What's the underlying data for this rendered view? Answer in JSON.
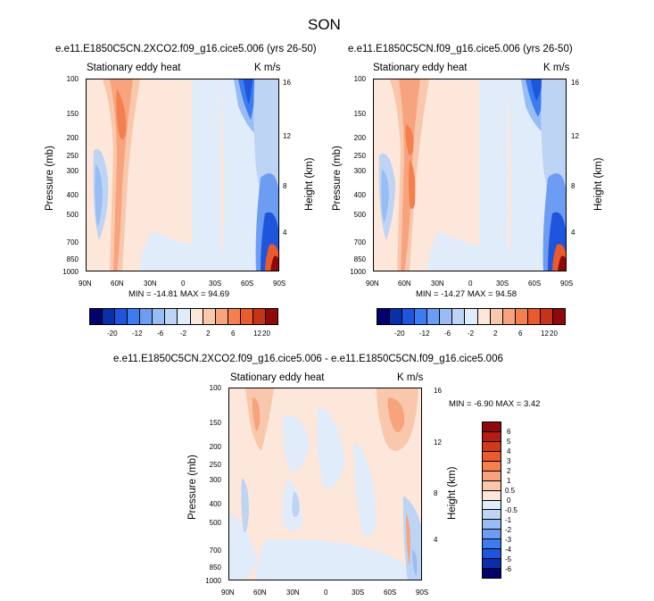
{
  "season": "SON",
  "colors": {
    "horizontal_bar": [
      "#02026d",
      "#0b2fa8",
      "#1f55dd",
      "#3c7cf0",
      "#6d9df3",
      "#98bdf4",
      "#bdd4f4",
      "#e1ecfb",
      "#fde6da",
      "#f9c7ab",
      "#f7a47e",
      "#f4804f",
      "#e95a2d",
      "#c73316",
      "#8e0a0a"
    ],
    "vertical_bar": [
      "#8e0a0a",
      "#b31e12",
      "#d2391b",
      "#ec5a2f",
      "#f4804f",
      "#f7a47e",
      "#f9c7ab",
      "#fde6da",
      "#e1ecfb",
      "#bdd4f4",
      "#98bdf4",
      "#6d9df3",
      "#3c7cf0",
      "#1f55dd",
      "#0b2fa8",
      "#02026d"
    ]
  },
  "chart_data": [
    {
      "type": "contour",
      "title": "e.e11.E1850C5CN.2XCO2.f09_g16.cice5.006 (yrs 26-50)",
      "left_string": "Stationary eddy heat",
      "right_string": "K m/s",
      "xlabel": "",
      "ylabel": "Pressure (mb)",
      "ylabel_right": "Height (km)",
      "x_ticks": [
        "90N",
        "60N",
        "30N",
        "0",
        "30S",
        "60S",
        "90S"
      ],
      "y_ticks": [
        "100",
        "150",
        "200",
        "250",
        "300",
        "400",
        "500",
        "700",
        "850",
        "1000"
      ],
      "y_right_ticks": [
        "16",
        "12",
        "8",
        "4"
      ],
      "min_max": "MIN = -14.81   MAX = 94.69",
      "colorbar_labels": [
        "-20",
        "-12",
        "-6",
        "-2",
        "2",
        "6",
        "12",
        "20"
      ]
    },
    {
      "type": "contour",
      "title": "e.e11.E1850C5CN.f09_g16.cice5.006 (yrs 26-50)",
      "left_string": "Stationary eddy heat",
      "right_string": "K m/s",
      "xlabel": "",
      "ylabel": "Pressure (mb)",
      "ylabel_right": "Height (km)",
      "x_ticks": [
        "90N",
        "60N",
        "30N",
        "0",
        "30S",
        "60S",
        "90S"
      ],
      "y_ticks": [
        "100",
        "150",
        "200",
        "250",
        "300",
        "400",
        "500",
        "700",
        "850",
        "1000"
      ],
      "y_right_ticks": [
        "16",
        "12",
        "8",
        "4"
      ],
      "min_max": "MIN = -14.27   MAX = 94.58",
      "colorbar_labels": [
        "-20",
        "-12",
        "-6",
        "-2",
        "2",
        "6",
        "12",
        "20"
      ]
    },
    {
      "type": "contour",
      "title": "e.e11.E1850C5CN.2XCO2.f09_g16.cice5.006 - e.e11.E1850C5CN.f09_g16.cice5.006",
      "left_string": "Stationary eddy heat",
      "right_string": "K m/s",
      "xlabel": "",
      "ylabel": "Pressure (mb)",
      "ylabel_right": "Height (km)",
      "x_ticks": [
        "90N",
        "60N",
        "30N",
        "0",
        "30S",
        "60S",
        "90S"
      ],
      "y_ticks": [
        "100",
        "150",
        "200",
        "250",
        "300",
        "400",
        "500",
        "700",
        "850",
        "1000"
      ],
      "y_right_ticks": [
        "16",
        "12",
        "8",
        "4"
      ],
      "min_max": "MIN =  -6.90   MAX =   3.42",
      "colorbar_labels": [
        "6",
        "5",
        "4",
        "3",
        "2",
        "1",
        "0.5",
        "0",
        "-0.5",
        "-1",
        "-2",
        "-3",
        "-4",
        "-5",
        "-6"
      ]
    }
  ]
}
